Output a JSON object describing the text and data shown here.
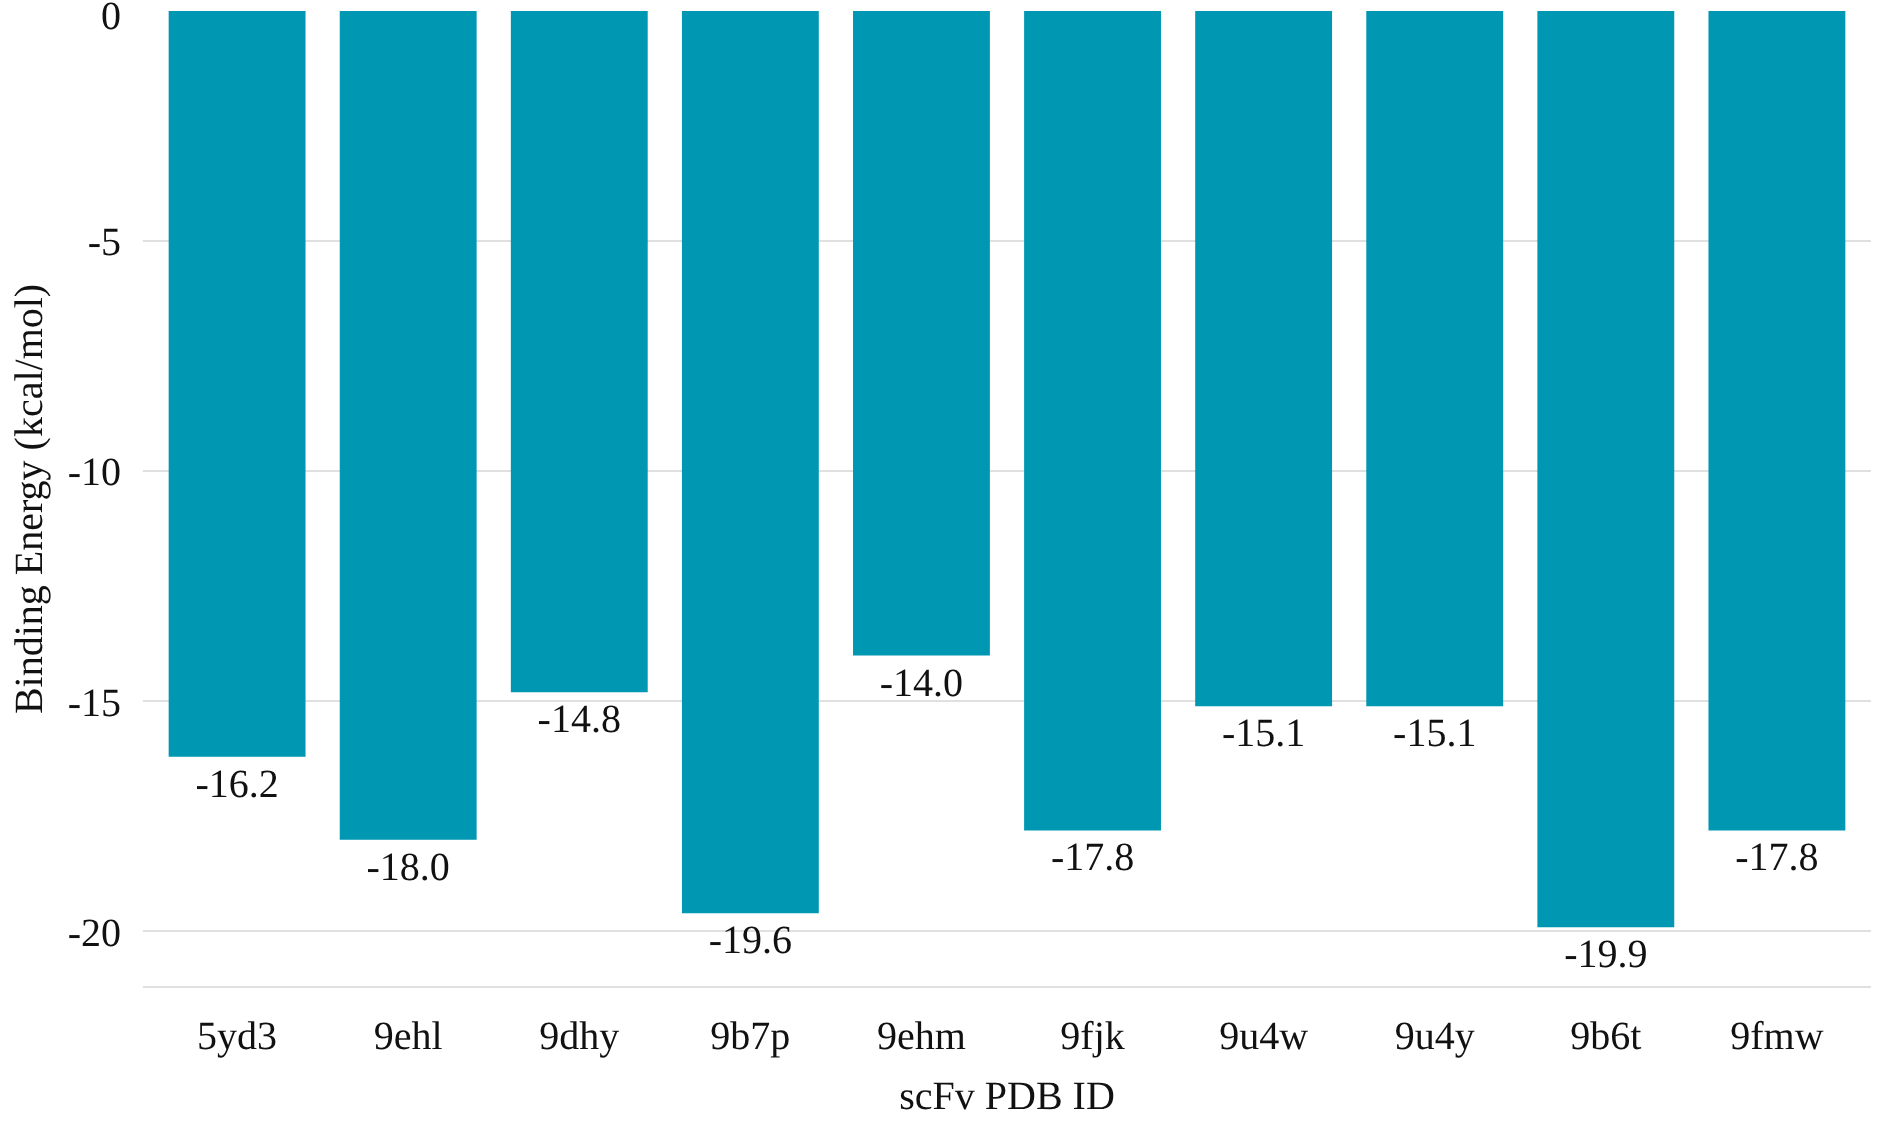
{
  "chart_data": {
    "type": "bar",
    "xlabel": "scFv PDB ID",
    "ylabel": "Binding Energy (kcal/mol)",
    "categories": [
      "5yd3",
      "9ehl",
      "9dhy",
      "9b7p",
      "9ehm",
      "9fjk",
      "9u4w",
      "9u4y",
      "9b6t",
      "9fmw"
    ],
    "values": [
      -16.2,
      -18.0,
      -14.8,
      -19.6,
      -14.0,
      -17.8,
      -15.1,
      -15.1,
      -19.9,
      -17.8
    ],
    "value_labels": [
      "-16.2",
      "-18.0",
      "-14.8",
      "-19.6",
      "-14.0",
      "-17.8",
      "-15.1",
      "-15.1",
      "-19.9",
      "-17.8"
    ],
    "color": "#0097b2",
    "ylim": [
      -21.2,
      0
    ],
    "yticks": [
      0,
      -5,
      -10,
      -15,
      -20
    ],
    "grid": "y"
  }
}
